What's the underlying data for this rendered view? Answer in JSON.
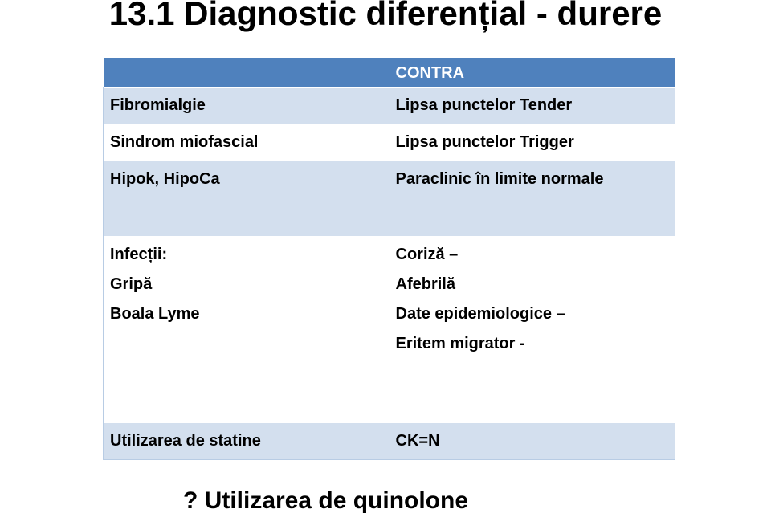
{
  "title": "13.1 Diagnostic diferențial - durere",
  "table": {
    "header": [
      "",
      "CONTRA"
    ],
    "rows": [
      {
        "left": [
          "Fibromialgie"
        ],
        "right": [
          "Lipsa punctelor Tender"
        ]
      },
      {
        "left": [
          "Sindrom miofascial"
        ],
        "right": [
          "Lipsa punctelor Trigger"
        ]
      },
      {
        "left": [
          "Hipok, HipoCa"
        ],
        "right": [
          "Paraclinic în limite normale"
        ]
      },
      {
        "left": [
          "Infecții:",
          "Gripă",
          "Boala Lyme"
        ],
        "right": [
          "Coriză –",
          "Afebrilă",
          "Date epidemiologice –",
          "Eritem migrator -"
        ]
      },
      {
        "left": [
          "Utilizarea de statine"
        ],
        "right": [
          "CK=N"
        ]
      }
    ]
  },
  "footnote": "? Utilizarea de quinolone"
}
